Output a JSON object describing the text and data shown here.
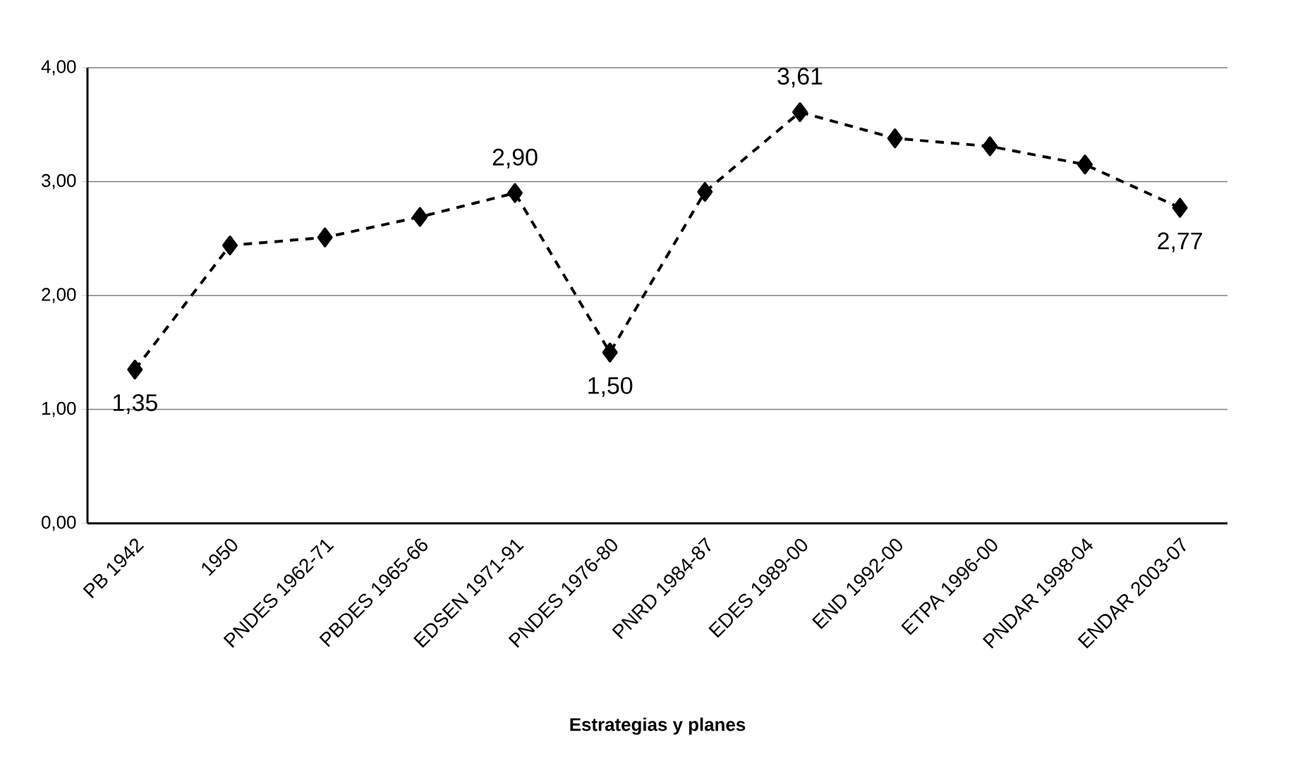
{
  "chart_data": {
    "type": "line",
    "xlabel": "Estrategias y planes",
    "categories": [
      "PB 1942",
      "1950",
      "PNDES 1962-71",
      "PBDES 1965-66",
      "EDSEN 1971-91",
      "PNDES 1976-80",
      "PNRD 1984-87",
      "EDES 1989-00",
      "END 1992-00",
      "ETPA 1996-00",
      "PNDAR 1998-04",
      "ENDAR 2003-07"
    ],
    "values": [
      1.35,
      2.44,
      2.51,
      2.69,
      2.9,
      1.5,
      2.91,
      3.61,
      3.38,
      3.31,
      3.15,
      2.77
    ],
    "value_labels": [
      "1,35",
      null,
      null,
      null,
      "2,90",
      "1,50",
      null,
      "3,61",
      null,
      null,
      null,
      "2,77"
    ],
    "color": "#000000",
    "marker": "diamond",
    "line_style": "dashed",
    "grid": "y",
    "ylim": [
      0,
      4
    ],
    "yticks": [
      {
        "value": 0,
        "label": "0,00"
      },
      {
        "value": 1,
        "label": "1,00"
      },
      {
        "value": 2,
        "label": "2,00"
      },
      {
        "value": 3,
        "label": "3,00"
      },
      {
        "value": 4,
        "label": "4,00"
      }
    ]
  }
}
